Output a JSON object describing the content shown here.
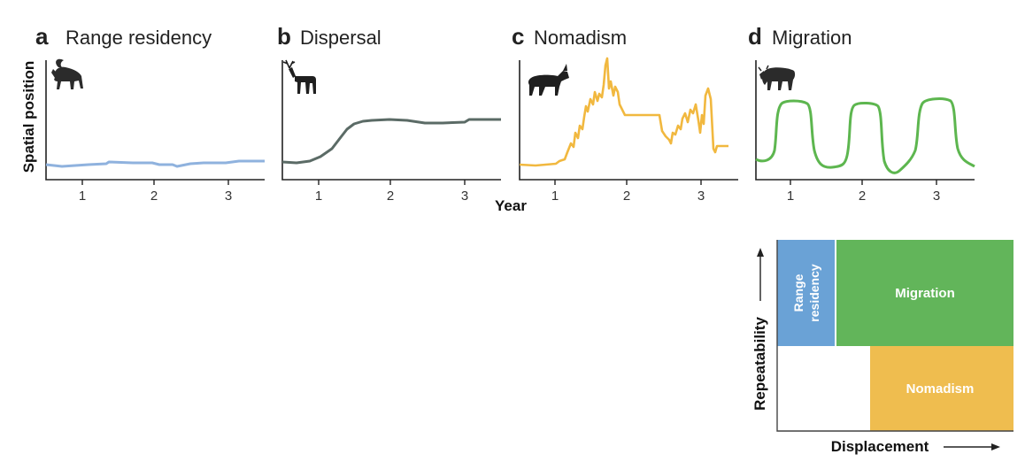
{
  "figure": {
    "y_axis_title": "Spatial position",
    "x_axis_title": "Year",
    "panels": [
      {
        "letter": "a",
        "title": "Range residency",
        "animal_icon": "ibex-icon",
        "color": "#8fb2de",
        "ticks": [
          "1",
          "2",
          "3"
        ]
      },
      {
        "letter": "b",
        "title": "Dispersal",
        "animal_icon": "deer-icon",
        "color": "#5b6b66",
        "ticks": [
          "1",
          "2",
          "3"
        ]
      },
      {
        "letter": "c",
        "title": "Nomadism",
        "animal_icon": "wild-ass-icon",
        "color": "#f1b83f",
        "ticks": [
          "1",
          "2",
          "3"
        ]
      },
      {
        "letter": "d",
        "title": "Migration",
        "animal_icon": "wildebeest-icon",
        "color": "#5db64f",
        "ticks": [
          "1",
          "2",
          "3"
        ]
      }
    ]
  },
  "matrix": {
    "y_label": "Repeatability",
    "x_label": "Displacement",
    "boxes": {
      "range_residency_line1": "Range",
      "range_residency_line2": "residency",
      "migration": "Migration",
      "nomadism": "Nomadism"
    },
    "colors": {
      "range_residency": "#6aa2d6",
      "migration": "#62b55a",
      "nomadism": "#efbd4f"
    }
  }
}
